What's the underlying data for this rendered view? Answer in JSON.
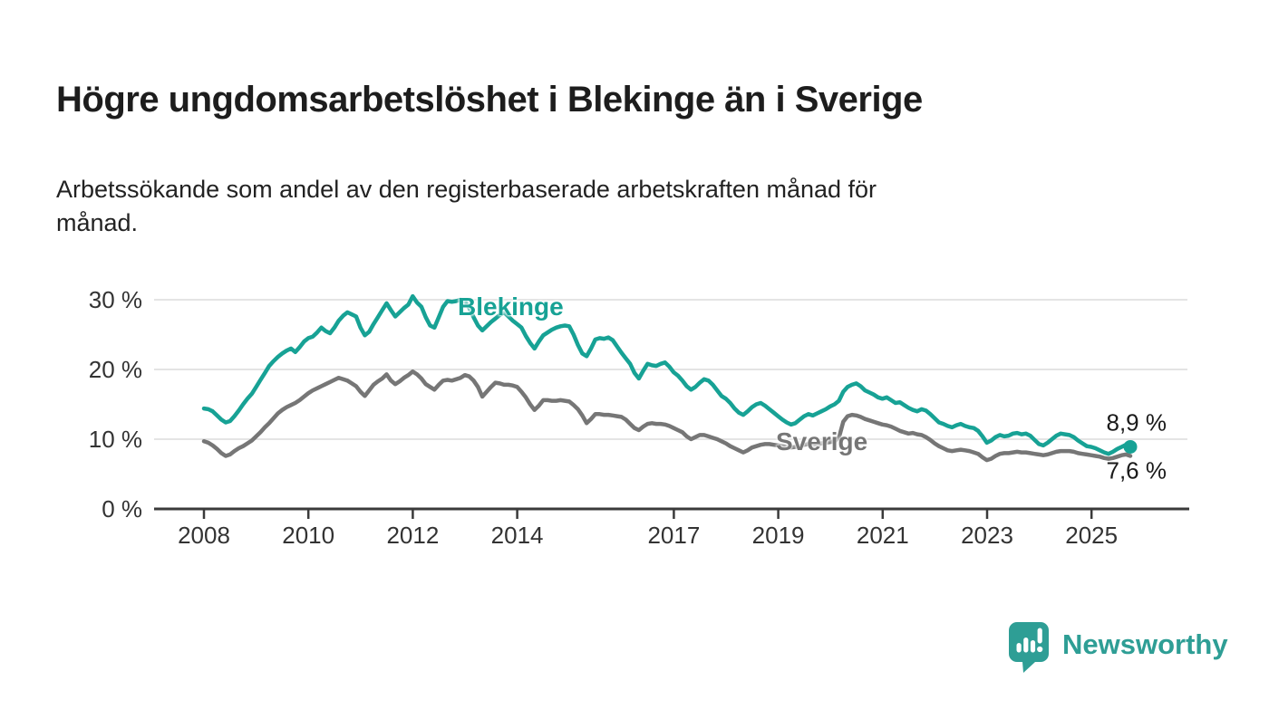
{
  "title": "Högre ungdomsarbetslöshet i Blekinge än i Sverige",
  "subtitle": "Arbetssökande som andel av den registerbaserade arbetskraften månad för månad.",
  "branding": {
    "name": "Newsworthy",
    "logo_icon": "speech-bubble-bar-chart"
  },
  "colors": {
    "blekinge": "#17A295",
    "sverige": "#767676",
    "grid": "#DCDCDC",
    "axis": "#3A3A3A",
    "tick_text": "#333333",
    "annotation_text": "#1A1A1A",
    "brand": "#2E9E95"
  },
  "chart_data": {
    "type": "line",
    "x_unit": "month",
    "x_start": "2008-01",
    "x_end": "2025-10",
    "xlabel": "",
    "ylabel": "",
    "ylim": [
      0,
      32
    ],
    "grid": "horizontal",
    "legend": "inline-labels",
    "xticks": [
      {
        "value": 2008,
        "label": "2008"
      },
      {
        "value": 2010,
        "label": "2010"
      },
      {
        "value": 2012,
        "label": "2012"
      },
      {
        "value": 2014,
        "label": "2014"
      },
      {
        "value": 2017,
        "label": "2017"
      },
      {
        "value": 2019,
        "label": "2019"
      },
      {
        "value": 2021,
        "label": "2021"
      },
      {
        "value": 2023,
        "label": "2023"
      },
      {
        "value": 2025,
        "label": "2025"
      }
    ],
    "yticks": [
      {
        "value": 0,
        "label": "0 %"
      },
      {
        "value": 10,
        "label": "10 %"
      },
      {
        "value": 20,
        "label": "20 %"
      },
      {
        "value": 30,
        "label": "30 %"
      }
    ],
    "series": [
      {
        "name": "Blekinge",
        "color": "#17A295",
        "end_label": "8,9 %",
        "end_value": 8.9,
        "values": [
          14.4,
          14.3,
          14.0,
          13.4,
          12.8,
          12.4,
          12.6,
          13.3,
          14.1,
          15.0,
          15.8,
          16.5,
          17.5,
          18.5,
          19.5,
          20.5,
          21.2,
          21.8,
          22.3,
          22.7,
          23.0,
          22.5,
          23.2,
          24.0,
          24.5,
          24.7,
          25.3,
          26.0,
          25.5,
          25.2,
          26.0,
          27.0,
          27.7,
          28.2,
          27.9,
          27.6,
          26.0,
          24.9,
          25.4,
          26.5,
          27.5,
          28.5,
          29.5,
          28.5,
          27.6,
          28.2,
          28.8,
          29.3,
          30.5,
          29.6,
          29.0,
          27.5,
          26.3,
          26.0,
          27.5,
          29.0,
          29.8,
          29.7,
          29.8,
          30.0,
          29.8,
          28.8,
          27.5,
          26.3,
          25.6,
          26.2,
          26.8,
          27.3,
          27.8,
          28.2,
          27.6,
          27.0,
          26.5,
          26.0,
          24.8,
          23.8,
          23.0,
          24.0,
          24.9,
          25.3,
          25.7,
          26.0,
          26.2,
          26.3,
          26.2,
          25.0,
          23.5,
          22.3,
          21.9,
          23.0,
          24.3,
          24.5,
          24.4,
          24.6,
          24.2,
          23.3,
          22.4,
          21.6,
          20.8,
          19.5,
          18.7,
          19.8,
          20.8,
          20.6,
          20.5,
          20.8,
          21.0,
          20.4,
          19.6,
          19.1,
          18.4,
          17.6,
          17.1,
          17.5,
          18.1,
          18.6,
          18.4,
          17.8,
          17.0,
          16.2,
          15.8,
          15.2,
          14.4,
          13.8,
          13.5,
          14.0,
          14.6,
          15.0,
          15.2,
          14.8,
          14.3,
          13.8,
          13.3,
          12.8,
          12.4,
          12.1,
          12.3,
          12.8,
          13.3,
          13.6,
          13.4,
          13.7,
          14.0,
          14.3,
          14.7,
          15.0,
          15.5,
          16.8,
          17.5,
          17.8,
          18.0,
          17.6,
          17.0,
          16.7,
          16.4,
          16.0,
          15.8,
          16.0,
          15.6,
          15.2,
          15.3,
          14.9,
          14.5,
          14.2,
          14.0,
          14.3,
          14.1,
          13.6,
          13.0,
          12.4,
          12.2,
          11.9,
          11.7,
          12.0,
          12.2,
          11.9,
          11.7,
          11.6,
          11.2,
          10.4,
          9.5,
          9.8,
          10.3,
          10.6,
          10.4,
          10.5,
          10.8,
          10.9,
          10.7,
          10.8,
          10.5,
          9.9,
          9.3,
          9.1,
          9.5,
          10.0,
          10.5,
          10.8,
          10.7,
          10.6,
          10.3,
          9.8,
          9.4,
          9.0,
          8.9,
          8.7,
          8.4,
          8.1,
          7.9,
          8.2,
          8.6,
          8.9,
          9.2,
          8.9
        ]
      },
      {
        "name": "Sverige",
        "color": "#767676",
        "end_label": "7,6 %",
        "end_value": 7.6,
        "values": [
          9.7,
          9.5,
          9.1,
          8.6,
          8.0,
          7.6,
          7.8,
          8.3,
          8.7,
          9.0,
          9.4,
          9.8,
          10.4,
          11.0,
          11.7,
          12.3,
          13.0,
          13.7,
          14.2,
          14.6,
          14.9,
          15.2,
          15.6,
          16.1,
          16.6,
          17.0,
          17.3,
          17.6,
          17.9,
          18.2,
          18.5,
          18.8,
          18.6,
          18.4,
          18.0,
          17.6,
          16.8,
          16.2,
          17.0,
          17.8,
          18.3,
          18.7,
          19.3,
          18.4,
          17.9,
          18.3,
          18.8,
          19.2,
          19.7,
          19.3,
          18.7,
          17.9,
          17.5,
          17.1,
          17.8,
          18.4,
          18.5,
          18.4,
          18.6,
          18.8,
          19.2,
          19.0,
          18.4,
          17.5,
          16.1,
          16.8,
          17.5,
          18.1,
          18.0,
          17.8,
          17.8,
          17.7,
          17.5,
          16.8,
          16.0,
          15.0,
          14.2,
          14.8,
          15.6,
          15.6,
          15.5,
          15.5,
          15.6,
          15.5,
          15.4,
          14.9,
          14.3,
          13.4,
          12.3,
          12.9,
          13.6,
          13.6,
          13.5,
          13.5,
          13.4,
          13.3,
          13.2,
          12.8,
          12.2,
          11.6,
          11.3,
          11.8,
          12.2,
          12.3,
          12.2,
          12.2,
          12.1,
          11.9,
          11.6,
          11.3,
          11.0,
          10.4,
          10.0,
          10.3,
          10.6,
          10.6,
          10.4,
          10.2,
          10.0,
          9.7,
          9.4,
          9.0,
          8.7,
          8.4,
          8.1,
          8.4,
          8.8,
          9.0,
          9.2,
          9.3,
          9.3,
          9.2,
          9.1,
          9.0,
          8.9,
          8.8,
          8.9,
          9.0,
          9.2,
          9.3,
          9.2,
          9.3,
          9.4,
          9.5,
          9.6,
          9.7,
          10.2,
          12.5,
          13.3,
          13.5,
          13.4,
          13.2,
          12.9,
          12.7,
          12.5,
          12.3,
          12.1,
          12.0,
          11.8,
          11.5,
          11.2,
          11.0,
          10.8,
          10.9,
          10.7,
          10.6,
          10.3,
          9.9,
          9.4,
          9.0,
          8.7,
          8.4,
          8.3,
          8.4,
          8.5,
          8.4,
          8.3,
          8.1,
          7.9,
          7.4,
          7.0,
          7.2,
          7.6,
          7.9,
          8.0,
          8.0,
          8.1,
          8.2,
          8.1,
          8.1,
          8.0,
          7.9,
          7.8,
          7.7,
          7.8,
          8.0,
          8.2,
          8.3,
          8.3,
          8.3,
          8.2,
          8.0,
          7.9,
          7.8,
          7.7,
          7.6,
          7.5,
          7.3,
          7.2,
          7.3,
          7.5,
          7.7,
          7.8,
          7.6
        ]
      }
    ]
  }
}
